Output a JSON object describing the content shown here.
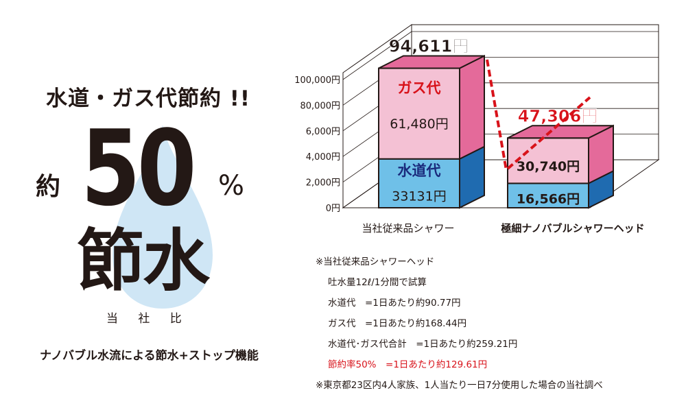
{
  "left_panel": {
    "headline": "水道・ガス代節約 !!",
    "approx": "約",
    "percent_number": "50",
    "percent_sign": "%",
    "main_word": "節水",
    "comparison": "当 社 比",
    "feature": "ナノバブル水流による節水+ストップ機能"
  },
  "chart_data": {
    "type": "bar",
    "stacked": true,
    "categories": [
      "当社従来品シャワー",
      "極細ナノバブルシャワーヘッド"
    ],
    "series": [
      {
        "name": "水道代",
        "values": [
          33131,
          16566
        ],
        "labels": [
          "33131円",
          "16,566円"
        ],
        "color": "#6fc0e8",
        "side_color": "#1f6bb0"
      },
      {
        "name": "ガス代",
        "values": [
          61480,
          30740
        ],
        "labels": [
          "61,480円",
          "30,740円"
        ],
        "color": "#f4c1d4",
        "side_color": "#e46a9a"
      }
    ],
    "totals": [
      "94,611円",
      "47,306円"
    ],
    "total_colors": [
      "#231815",
      "#d8121a"
    ],
    "series_inbar_labels": [
      "ガス代",
      "水道代"
    ],
    "yticks": [
      "0円",
      "2,000円",
      "4,000円",
      "6,000円",
      "80,000円",
      "100,000円"
    ],
    "ylim": [
      0,
      100000
    ],
    "grid": true,
    "connector_color": "#d8121a"
  },
  "notes": [
    {
      "text": "※当社従来品シャワーヘッド",
      "red": false
    },
    {
      "text": "吐水量12ℓ/1分間で試算",
      "red": false
    },
    {
      "text": "水道代　=1日あたり約90.77円",
      "red": false
    },
    {
      "text": "ガス代　=1日あたり約168.44円",
      "red": false
    },
    {
      "text": "水道代･ガス代合計　=1日あたり約259.21円",
      "red": false
    },
    {
      "text": "節約率50%　=1日あたり約129.61円",
      "red": true
    },
    {
      "text": "※東京都23区内4人家族、1人当たり一日7分使用した場合の当社調べ",
      "red": false
    }
  ]
}
